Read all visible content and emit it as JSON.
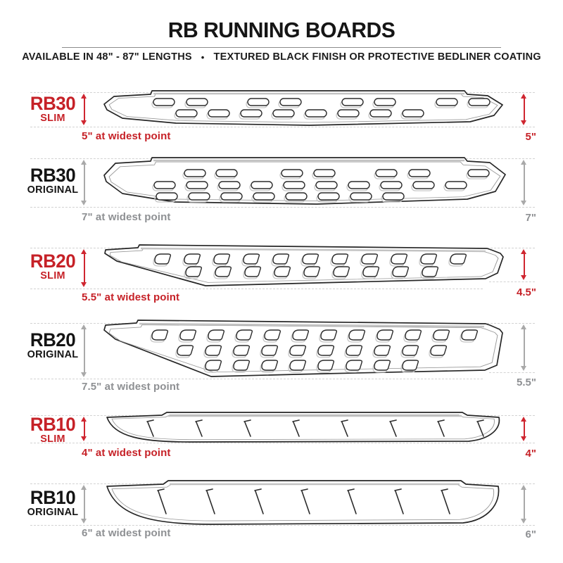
{
  "header": {
    "title": "RB RUNNING BOARDS",
    "subtitle_left": "AVAILABLE IN 48\" - 87\" LENGTHS",
    "separator": "•",
    "subtitle_right": "TEXTURED BLACK FINISH OR PROTECTIVE BEDLINER COATING"
  },
  "colors": {
    "accent_red": "#c62127",
    "neutral_gray": "#8e9093"
  },
  "rows": [
    {
      "code": "RB30",
      "variant": "SLIM",
      "theme": "red",
      "width_note": "5\" at widest point",
      "height_label": "5\""
    },
    {
      "code": "RB30",
      "variant": "ORIGINAL",
      "theme": "gray",
      "width_note": "7\" at widest point",
      "height_label": "7\""
    },
    {
      "code": "RB20",
      "variant": "SLIM",
      "theme": "red",
      "width_note": "5.5\" at widest point",
      "height_label": "4.5\""
    },
    {
      "code": "RB20",
      "variant": "ORIGINAL",
      "theme": "gray",
      "width_note": "7.5\" at widest point",
      "height_label": "5.5\""
    },
    {
      "code": "RB10",
      "variant": "SLIM",
      "theme": "red",
      "width_note": "4\" at widest point",
      "height_label": "4\""
    },
    {
      "code": "RB10",
      "variant": "ORIGINAL",
      "theme": "gray",
      "width_note": "6\" at widest point",
      "height_label": "6\""
    }
  ]
}
